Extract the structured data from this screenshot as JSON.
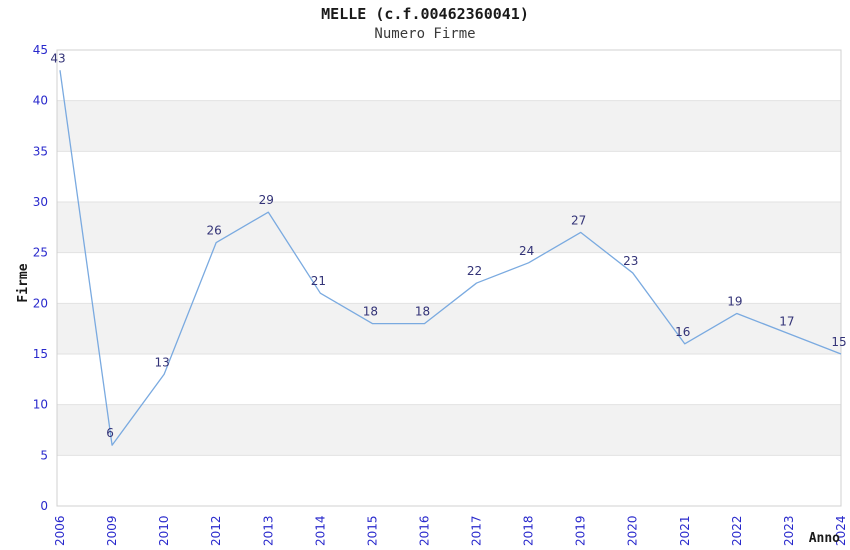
{
  "header": {
    "title": "MELLE (c.f.00462360041)",
    "subtitle": "Numero Firme"
  },
  "chart_data": {
    "type": "line",
    "title": "MELLE (c.f.00462360041)",
    "subtitle": "Numero Firme",
    "xlabel": "Anno",
    "ylabel": "Firme",
    "x": [
      "2006",
      "2009",
      "2010",
      "2012",
      "2013",
      "2014",
      "2015",
      "2016",
      "2017",
      "2018",
      "2019",
      "2020",
      "2021",
      "2022",
      "2023",
      "2024"
    ],
    "values": [
      43,
      6,
      13,
      26,
      29,
      21,
      18,
      18,
      22,
      24,
      27,
      23,
      16,
      19,
      17,
      15
    ],
    "ylim": [
      0,
      45
    ],
    "ytick_step": 5,
    "yticks": [
      0,
      5,
      10,
      15,
      20,
      25,
      30,
      35,
      40,
      45
    ],
    "grid": "horizontal-lines-with-alternating-bands",
    "legend": "none",
    "colors": {
      "line": "#7aaae0",
      "tick_label": "#2929cc",
      "data_label": "#333377",
      "band": "#f2f2f2",
      "grid_line": "#e2e2e2",
      "plot_border": "#d0d0d0",
      "title": "#1a1a1a",
      "subtitle": "#3a3a3a",
      "axis_title": "#1a1a1a",
      "background": "#ffffff"
    }
  }
}
